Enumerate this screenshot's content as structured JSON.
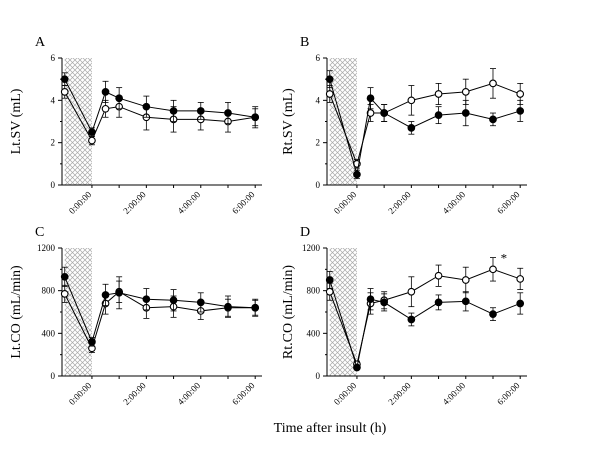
{
  "figure": {
    "xlabel": "Time after insult (h)"
  },
  "colors": {
    "ink": "#000000",
    "background": "#ffffff",
    "shade": "#cfcfcf"
  },
  "chart_data": [
    {
      "type": "line",
      "panel": "A",
      "ylabel": "Lt.SV (mL)",
      "ylim": [
        0,
        6
      ],
      "yticks": [
        "0",
        "2",
        "4",
        "6"
      ],
      "xlim": [
        -1.1,
        6.25
      ],
      "xticks": [
        {
          "x": 0,
          "label": "0:00:00"
        },
        {
          "x": 2,
          "label": "2:00:00"
        },
        {
          "x": 4,
          "label": "4:00:00"
        },
        {
          "x": 6,
          "label": "6:00:00"
        }
      ],
      "shaded_interval": [
        -1,
        0
      ],
      "x": [
        -1,
        0,
        0.5,
        1,
        2,
        3,
        4,
        5,
        6
      ],
      "series": [
        {
          "name": "filled",
          "marker": "filled",
          "values": [
            5.0,
            2.5,
            4.4,
            4.1,
            3.7,
            3.5,
            3.5,
            3.4,
            3.2
          ],
          "err": [
            0.3,
            0.2,
            0.5,
            0.5,
            0.5,
            0.5,
            0.4,
            0.5,
            0.5
          ]
        },
        {
          "name": "open",
          "marker": "open",
          "values": [
            4.4,
            2.1,
            3.6,
            3.7,
            3.2,
            3.1,
            3.1,
            3.0,
            3.2
          ],
          "err": [
            0.3,
            0.2,
            0.4,
            0.5,
            0.6,
            0.6,
            0.5,
            0.5,
            0.4
          ]
        }
      ]
    },
    {
      "type": "line",
      "panel": "B",
      "ylabel": "Rt.SV (mL)",
      "ylim": [
        0,
        6
      ],
      "yticks": [
        "0",
        "2",
        "4",
        "6"
      ],
      "xlim": [
        -1.1,
        6.25
      ],
      "xticks": [
        {
          "x": 0,
          "label": "0:00:00"
        },
        {
          "x": 2,
          "label": "2:00:00"
        },
        {
          "x": 4,
          "label": "4:00:00"
        },
        {
          "x": 6,
          "label": "6:00:00"
        }
      ],
      "shaded_interval": [
        -1,
        0
      ],
      "x": [
        -1,
        0,
        0.5,
        1,
        2,
        3,
        4,
        5,
        6
      ],
      "series": [
        {
          "name": "filled",
          "marker": "filled",
          "values": [
            5.0,
            0.5,
            4.1,
            3.4,
            2.7,
            3.3,
            3.4,
            3.1,
            3.5
          ],
          "err": [
            0.4,
            0.2,
            0.5,
            0.4,
            0.3,
            0.4,
            0.6,
            0.3,
            0.5
          ]
        },
        {
          "name": "open",
          "marker": "open",
          "values": [
            4.3,
            1.0,
            3.4,
            3.4,
            4.0,
            4.3,
            4.4,
            4.8,
            4.3
          ],
          "err": [
            0.4,
            0.2,
            0.4,
            0.4,
            0.7,
            0.5,
            0.6,
            0.7,
            0.5
          ]
        }
      ]
    },
    {
      "type": "line",
      "panel": "C",
      "ylabel": "Lt.CO (mL/min)",
      "ylim": [
        0,
        1200
      ],
      "yticks": [
        "0",
        "400",
        "800",
        "1200"
      ],
      "xlim": [
        -1.1,
        6.25
      ],
      "xticks": [
        {
          "x": 0,
          "label": "0:00:00"
        },
        {
          "x": 2,
          "label": "2:00:00"
        },
        {
          "x": 4,
          "label": "4:00:00"
        },
        {
          "x": 6,
          "label": "6:00:00"
        }
      ],
      "shaded_interval": [
        -1,
        0
      ],
      "x": [
        -1,
        0,
        0.5,
        1,
        2,
        3,
        4,
        5,
        6
      ],
      "series": [
        {
          "name": "filled",
          "marker": "filled",
          "values": [
            930,
            320,
            760,
            780,
            720,
            710,
            690,
            650,
            640
          ],
          "err": [
            90,
            40,
            100,
            150,
            100,
            100,
            90,
            100,
            80
          ]
        },
        {
          "name": "open",
          "marker": "open",
          "values": [
            770,
            260,
            680,
            790,
            640,
            650,
            610,
            640,
            640
          ],
          "err": [
            80,
            40,
            100,
            100,
            100,
            100,
            80,
            80,
            70
          ]
        }
      ]
    },
    {
      "type": "line",
      "panel": "D",
      "ylabel": "Rt.CO (mL/min)",
      "ylim": [
        0,
        1200
      ],
      "yticks": [
        "0",
        "400",
        "800",
        "1200"
      ],
      "xlim": [
        -1.1,
        6.25
      ],
      "xticks": [
        {
          "x": 0,
          "label": "0:00:00"
        },
        {
          "x": 2,
          "label": "2:00:00"
        },
        {
          "x": 4,
          "label": "4:00:00"
        },
        {
          "x": 6,
          "label": "6:00:00"
        }
      ],
      "shaded_interval": [
        -1,
        0
      ],
      "x": [
        -1,
        0,
        0.5,
        1,
        2,
        3,
        4,
        5,
        6
      ],
      "series": [
        {
          "name": "filled",
          "marker": "filled",
          "values": [
            900,
            80,
            720,
            690,
            530,
            690,
            700,
            580,
            680
          ],
          "err": [
            80,
            20,
            100,
            80,
            60,
            70,
            90,
            60,
            100
          ]
        },
        {
          "name": "open",
          "marker": "open",
          "values": [
            790,
            110,
            680,
            710,
            790,
            940,
            900,
            1000,
            910
          ],
          "err": [
            80,
            30,
            100,
            80,
            140,
            100,
            120,
            110,
            100
          ]
        }
      ],
      "annotations": [
        {
          "text": "*",
          "x": 5.4,
          "y": 1100
        }
      ]
    }
  ]
}
